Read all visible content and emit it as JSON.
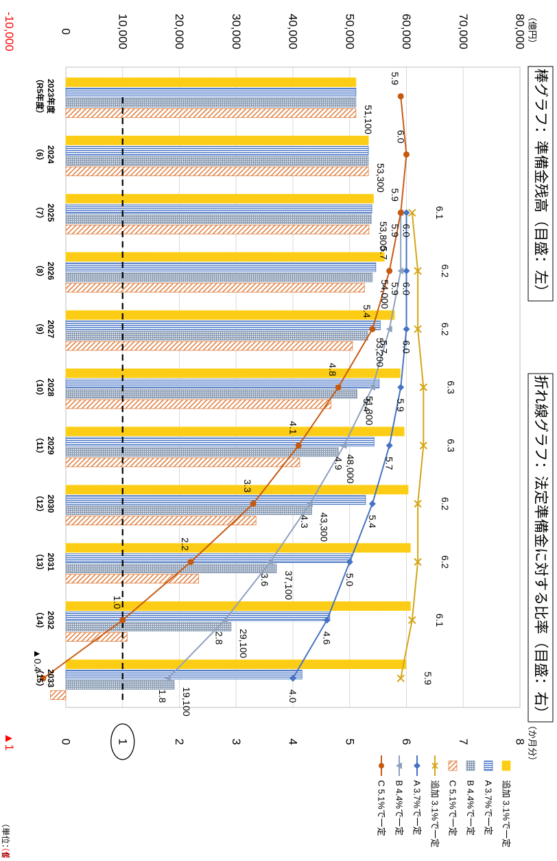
{
  "chart_data": {
    "type": "bar",
    "title_bar": "棒グラフ：準備金残高（目盛：左）",
    "title_line": "折れ線グラフ：法定準備金に対する比率（目盛：右）",
    "left_axis": {
      "unit": "（億円）",
      "ticks": [
        "-10,000",
        "0",
        "10,000",
        "20,000",
        "30,000",
        "40,000",
        "50,000",
        "60,000",
        "70,000",
        "80,000"
      ],
      "tick_values": [
        -10000,
        0,
        10000,
        20000,
        30000,
        40000,
        50000,
        60000,
        70000,
        80000
      ],
      "ylim": [
        -10000,
        80000
      ],
      "footnote": "（億円）"
    },
    "right_axis": {
      "unit": "（か月分）",
      "ticks": [
        "▲1",
        "0",
        "1",
        "2",
        "3",
        "4",
        "5",
        "6",
        "7",
        "8"
      ],
      "tick_values": [
        -1,
        0,
        1,
        2,
        3,
        4,
        5,
        6,
        7,
        8
      ],
      "ylim": [
        -1,
        8
      ],
      "marked_tick": "1"
    },
    "categories": [
      "2023年度",
      "2024",
      "2025",
      "2026",
      "2027",
      "2028",
      "2029",
      "2030",
      "2031",
      "2032",
      "2033"
    ],
    "sub_categories": [
      "（R5年度）",
      "（6）",
      "（7）",
      "（8）",
      "（9）",
      "（10）",
      "（11）",
      "（12）",
      "（13）",
      "（14）",
      "（15）"
    ],
    "year_footer": "（単位：億円）",
    "bar_series": [
      {
        "name": "追加 3.1%で一定",
        "color": "#FFD21A",
        "values": [
          51100,
          53300,
          54200,
          56100,
          57900,
          58900,
          59600,
          60300,
          60700,
          60700,
          59900
        ]
      },
      {
        "name": "A 3.7%で一定",
        "color": "#4472C4",
        "values": [
          51100,
          53300,
          53900,
          54600,
          55400,
          55200,
          54300,
          52800,
          50300,
          46500,
          41600
        ]
      },
      {
        "name": "B 4.4%で一定",
        "color": "#8497B0",
        "values": [
          51100,
          53300,
          53800,
          54000,
          53200,
          51300,
          48000,
          43300,
          37100,
          29100,
          19100
        ]
      },
      {
        "name": "C 5.1%で一定",
        "color": "#E07B39",
        "values": [
          51100,
          53300,
          53400,
          52600,
          50500,
          46700,
          41200,
          33500,
          23400,
          10800,
          -2700
        ]
      }
    ],
    "bar_labels": [
      "51,100",
      "53,300",
      "53,800",
      "54,000",
      "53,200",
      "51,300",
      "48,000",
      "43,300",
      "37,100",
      "29,100",
      "19,100"
    ],
    "line_series": [
      {
        "name": "追加 3.1%で一定",
        "color": "#D4A514",
        "marker": "x",
        "values": [
          null,
          null,
          6.1,
          6.2,
          6.2,
          6.3,
          6.3,
          6.2,
          6.2,
          6.1,
          5.9
        ],
        "labels": [
          "",
          "",
          "6.1",
          "6.2",
          "6.2",
          "6.3",
          "6.3",
          "6.2",
          "6.2",
          "6.1",
          "5.9"
        ]
      },
      {
        "name": "A 3.7%で一定",
        "color": "#4472C4",
        "marker": "diamond",
        "values": [
          null,
          null,
          6.0,
          6.0,
          6.0,
          5.9,
          5.7,
          5.4,
          5.0,
          4.6,
          4.0
        ],
        "labels": [
          "",
          "",
          "6.0",
          "6.0",
          "6.0",
          "5.9",
          "5.7",
          "5.4",
          "5.0",
          "4.6",
          "4.0"
        ]
      },
      {
        "name": "B 4.4%で一定",
        "color": "#8EA0BD",
        "marker": "triangle",
        "values": [
          null,
          null,
          5.9,
          5.9,
          5.7,
          5.4,
          4.9,
          4.3,
          3.6,
          2.8,
          1.8
        ],
        "labels": [
          "",
          "",
          "5.9",
          "5.9",
          "5.7",
          "5.4",
          "4.9",
          "4.3",
          "3.6",
          "2.8",
          "1.8"
        ]
      },
      {
        "name": "C 5.1%で一定",
        "color": "#C65911",
        "marker": "circle",
        "values": [
          5.9,
          6.0,
          5.9,
          5.7,
          5.4,
          4.8,
          4.1,
          3.3,
          2.2,
          1.0,
          -0.4
        ],
        "labels": [
          "5.9",
          "6.0",
          "5.9",
          "5.7",
          "5.4",
          "4.8",
          "4.1",
          "3.3",
          "2.2",
          "1.0",
          "▲0.4"
        ]
      }
    ],
    "reference_line": {
      "value": 1,
      "style": "dashed"
    },
    "legend": [
      {
        "name": "追加 3.1%で一定",
        "kind": "bar"
      },
      {
        "name": "A 3.7%で一定",
        "kind": "bar"
      },
      {
        "name": "B 4.4%で一定",
        "kind": "bar"
      },
      {
        "name": "C 5.1%で一定",
        "kind": "bar"
      },
      {
        "name": "追加 3.1%で一定",
        "kind": "line"
      },
      {
        "name": "A 3.7%で一定",
        "kind": "line"
      },
      {
        "name": "B 4.4%で一定",
        "kind": "line"
      },
      {
        "name": "C 5.1%で一定",
        "kind": "line"
      }
    ],
    "legend_position": "right",
    "grid": true
  }
}
